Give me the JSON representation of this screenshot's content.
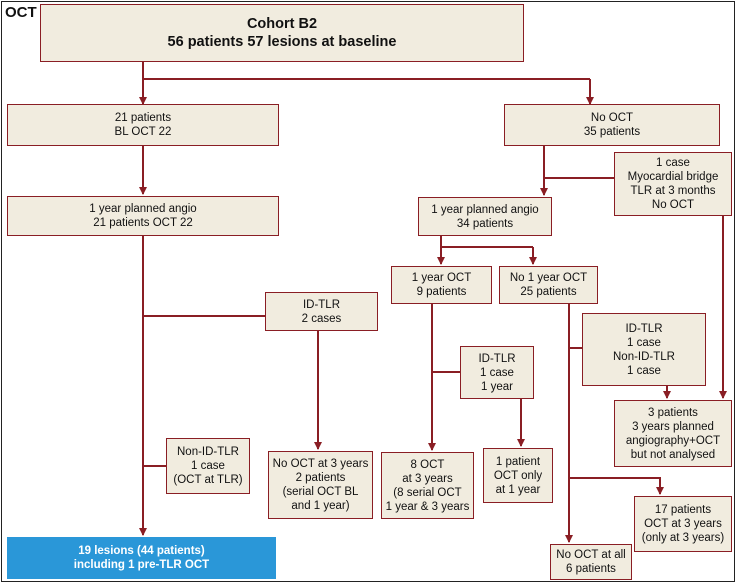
{
  "corner_label": "OCT",
  "colors": {
    "box_fill": "#f1ecdf",
    "border": "#8a1e24",
    "connector": "#8a1e24",
    "result_fill": "#2a97d8"
  },
  "nodes": {
    "cohort": {
      "lines": [
        "Cohort B2",
        "56 patients 57 lesions at baseline"
      ]
    },
    "oct_arm": {
      "lines": [
        "21 patients",
        "BL OCT 22"
      ]
    },
    "no_oct_arm": {
      "lines": [
        "No OCT",
        "35 patients"
      ]
    },
    "myocardial_bridge": {
      "lines": [
        "1 case",
        "Myocardial bridge",
        "TLR at 3 months",
        "No OCT"
      ]
    },
    "planned_angio_oct": {
      "lines": [
        "1 year planned angio",
        "21 patients OCT 22"
      ]
    },
    "planned_angio_no_oct": {
      "lines": [
        "1 year planned angio",
        "34 patients"
      ]
    },
    "one_year_oct": {
      "lines": [
        "1 year OCT",
        "9 patients"
      ]
    },
    "no_one_year_oct": {
      "lines": [
        "No 1 year OCT",
        "25 patients"
      ]
    },
    "id_tlr_two": {
      "lines": [
        "ID-TLR",
        "2 cases"
      ]
    },
    "id_tlr_nonid": {
      "lines": [
        "ID-TLR",
        "1 case",
        "Non-ID-TLR",
        "1 case"
      ]
    },
    "id_tlr_one_year": {
      "lines": [
        "ID-TLR",
        "1 case",
        "1 year"
      ]
    },
    "not_analysed": {
      "lines": [
        "3 patients",
        "3 years planned",
        "angiography+OCT",
        "but not analysed"
      ]
    },
    "non_id_tlr": {
      "lines": [
        "Non-ID-TLR",
        "1 case",
        "(OCT at TLR)"
      ]
    },
    "no_oct_3y": {
      "lines": [
        "No OCT at 3 years",
        "2 patients",
        "(serial OCT BL",
        "and 1 year)"
      ]
    },
    "eight_oct": {
      "lines": [
        "8 OCT",
        "at 3 years",
        "(8 serial OCT",
        "1 year & 3 years"
      ]
    },
    "one_patient_oct": {
      "lines": [
        "1 patient",
        "OCT only",
        "at 1 year"
      ]
    },
    "seventeen_patients": {
      "lines": [
        "17 patients",
        "OCT at 3 years",
        "(only at 3 years)"
      ]
    },
    "no_oct_at_all": {
      "lines": [
        "No OCT at all",
        "6 patients"
      ]
    },
    "result": {
      "lines": [
        "19 lesions (44 patients)",
        "including 1 pre-TLR OCT"
      ]
    }
  }
}
